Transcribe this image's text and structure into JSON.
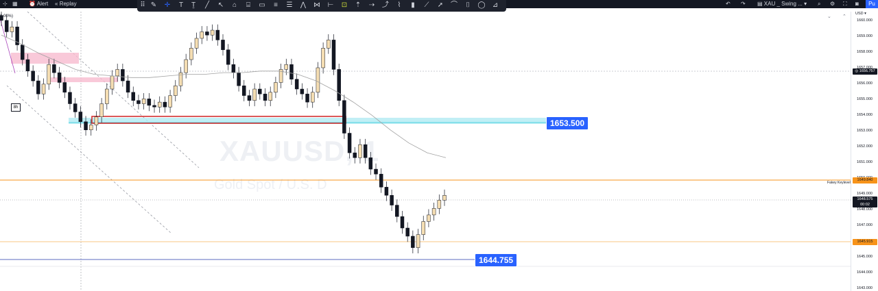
{
  "topbar": {
    "alert_label": "Alert",
    "replay_label": "Replay",
    "layout_name": "XAU _ Swing ...",
    "publish_label": "Pu"
  },
  "chart": {
    "timeframe_badge": "8h",
    "scale_pct": "0.00%)",
    "currency": "USD",
    "watermark_symbol": "XAUUSD, 1",
    "watermark_desc": "Gold Spot / U.S. D",
    "keylevel_label": "Fakey Keylevel",
    "callout_upper": "1653.500",
    "callout_lower": "1644.755"
  },
  "price_scale": {
    "ticks": [
      "1660.000",
      "1659.000",
      "1658.000",
      "1657.000",
      "1656.000",
      "1655.000",
      "1654.000",
      "1653.000",
      "1652.000",
      "1651.000",
      "1650.000",
      "1649.000",
      "1648.000",
      "1647.000",
      "1646.000",
      "1645.000",
      "1644.000",
      "1643.000"
    ],
    "labels": {
      "crosshair": "1656.757",
      "keylevel": "1649.840",
      "last_price": "1648.575",
      "countdown": "00:02",
      "low_level": "1645.915"
    }
  },
  "colors": {
    "background": "#ffffff",
    "topbar": "#131722",
    "orange_level": "#f7931a",
    "blue_callout": "#2962ff",
    "zone_red": "#d32f2f",
    "zone_cyan": "#b2ebf2",
    "zone_pink": "#f8bbd0"
  },
  "chart_data": {
    "type": "line",
    "title": "",
    "ylim": [
      1643,
      1660
    ],
    "series": [
      {
        "values": [
          1659.3,
          1658.6,
          1658.9,
          1657.8,
          1656.9,
          1656.2,
          1655.6,
          1654.8,
          1655.4,
          1656.6,
          1656.1,
          1655.5,
          1654.9,
          1654.2,
          1653.7,
          1653.1,
          1652.6,
          1652.9,
          1653.4,
          1654.2,
          1655.1,
          1655.9,
          1656.3,
          1655.6,
          1654.9,
          1654.4,
          1654.2,
          1654.5,
          1654.1,
          1654.0,
          1654.3,
          1654.0,
          1654.7,
          1655.3,
          1656.1,
          1656.9,
          1657.6,
          1658.2,
          1658.6,
          1658.4,
          1658.7,
          1658.1,
          1657.5,
          1656.6,
          1656.1,
          1655.3,
          1654.7,
          1654.4,
          1655.1,
          1654.8,
          1654.4,
          1654.9,
          1655.5,
          1656.3,
          1656.6,
          1655.7,
          1655.1,
          1654.8,
          1654.3,
          1654.9,
          1656.4,
          1657.6,
          1658.1,
          1656.3,
          1654.4,
          1652.4,
          1651.2,
          1650.9,
          1651.7,
          1650.9,
          1650.2,
          1649.9,
          1649.1,
          1648.6,
          1648.0,
          1647.3,
          1646.6,
          1646.1,
          1645.4,
          1646.2,
          1647.0,
          1647.4,
          1647.8,
          1648.3,
          1648.6
        ]
      },
      {
        "values": [
          1658.4,
          1657.9,
          1657.3,
          1656.8,
          1656.3,
          1656.0,
          1655.9,
          1655.8,
          1655.8,
          1655.9,
          1656.0,
          1656.0,
          1656.1,
          1656.1,
          1656.2,
          1656.2,
          1656.0,
          1655.6,
          1655.0,
          1654.3,
          1653.5,
          1652.6,
          1651.8,
          1651.2,
          1650.9
        ]
      }
    ]
  }
}
